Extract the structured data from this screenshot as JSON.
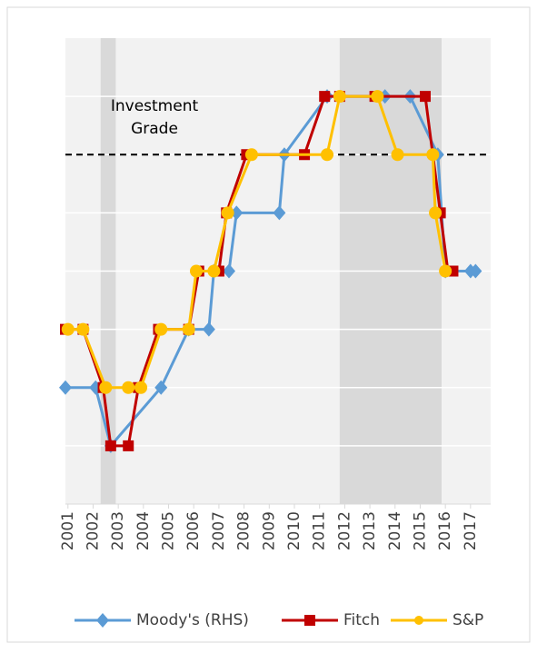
{
  "chart_data": {
    "type": "line",
    "annotation": {
      "lines": [
        "Investment",
        "Grade"
      ],
      "threshold": 6
    },
    "shaded_regions": [
      [
        2002.3,
        2002.9
      ],
      [
        2011.8,
        2015.85
      ]
    ],
    "xlim": [
      2000.9,
      2017.8
    ],
    "xticks": [
      2001,
      2002,
      2003,
      2004,
      2005,
      2006,
      2007,
      2008,
      2009,
      2010,
      2011,
      2012,
      2013,
      2014,
      2015,
      2016,
      2017
    ],
    "ylim": [
      0,
      8
    ],
    "yticks": [
      1,
      2,
      3,
      4,
      5,
      6,
      7
    ],
    "grid": true,
    "legend": "bottom",
    "series": [
      {
        "name": "Moody's (RHS)",
        "color": "#5b9bd5",
        "marker": "diamond",
        "x": [
          2000.9,
          2002.1,
          2002.7,
          2004.7,
          2005.8,
          2006.6,
          2006.8,
          2007.4,
          2007.7,
          2009.4,
          2009.6,
          2011.3,
          2013.6,
          2014.6,
          2015.7,
          2016.0,
          2017.0,
          2017.2
        ],
        "values": [
          2,
          2,
          1,
          2,
          3,
          3,
          4,
          4,
          5,
          5,
          6,
          7,
          7,
          7,
          6,
          4,
          4,
          4
        ]
      },
      {
        "name": "Fitch",
        "color": "#c00000",
        "marker": "square",
        "x": [
          2000.9,
          2001.6,
          2002.4,
          2002.7,
          2003.4,
          2003.8,
          2004.6,
          2005.8,
          2006.2,
          2007.0,
          2007.3,
          2008.1,
          2010.4,
          2011.2,
          2011.8,
          2013.2,
          2015.2,
          2015.8,
          2016.1,
          2016.3
        ],
        "values": [
          3,
          3,
          2,
          1,
          1,
          2,
          3,
          3,
          4,
          4,
          5,
          6,
          6,
          7,
          7,
          7,
          7,
          5,
          4,
          4
        ]
      },
      {
        "name": "S&P",
        "color": "#ffc000",
        "marker": "circle",
        "x": [
          2001.0,
          2001.6,
          2002.5,
          2003.4,
          2003.9,
          2004.7,
          2005.8,
          2006.1,
          2006.8,
          2007.35,
          2008.3,
          2011.3,
          2011.8,
          2013.3,
          2014.1,
          2015.5,
          2015.6,
          2016.0
        ],
        "values": [
          3,
          3,
          2,
          2,
          2,
          3,
          3,
          4,
          4,
          5,
          6,
          6,
          7,
          7,
          6,
          6,
          5,
          4
        ]
      }
    ]
  }
}
